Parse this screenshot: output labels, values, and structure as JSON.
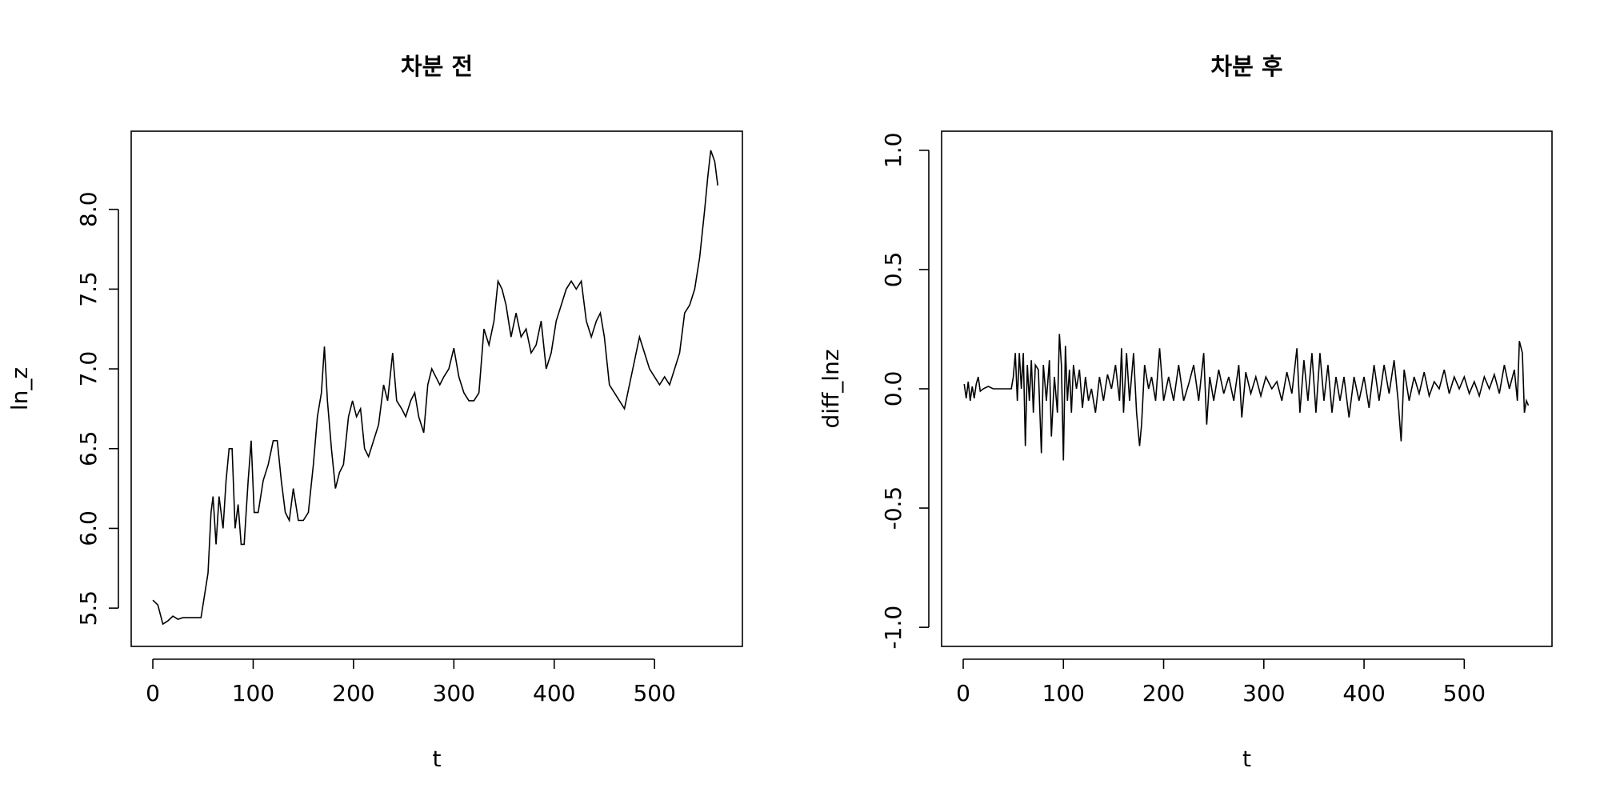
{
  "chart_data": [
    {
      "type": "line",
      "title": "차분 전",
      "xlabel": "t",
      "ylabel": "ln_z",
      "color": "#000000",
      "xlim": [
        -21.56,
        587.56
      ],
      "ylim": [
        5.26,
        8.49
      ],
      "xticks": [
        0,
        100,
        200,
        300,
        400,
        500
      ],
      "yticks": [
        5.5,
        {
          "value": 6.0,
          "label": "6.0"
        },
        6.5,
        {
          "value": 7.0,
          "label": "7.0"
        },
        7.5,
        {
          "value": 8.0,
          "label": "8.0"
        }
      ],
      "x": [
        0,
        5,
        10,
        15,
        20,
        25,
        30,
        40,
        48,
        52,
        55,
        58,
        60,
        63,
        66,
        70,
        73,
        76,
        79,
        82,
        85,
        88,
        91,
        95,
        98,
        101,
        105,
        110,
        115,
        120,
        124,
        128,
        132,
        136,
        140,
        145,
        150,
        155,
        160,
        164,
        168,
        171,
        174,
        178,
        182,
        186,
        190,
        195,
        199,
        203,
        207,
        211,
        215,
        220,
        225,
        230,
        234,
        239,
        243,
        248,
        252,
        257,
        261,
        265,
        270,
        274,
        278,
        282,
        286,
        290,
        295,
        300,
        305,
        310,
        315,
        320,
        325,
        330,
        335,
        340,
        344,
        348,
        352,
        357,
        362,
        367,
        372,
        377,
        382,
        387,
        392,
        397,
        402,
        407,
        412,
        417,
        422,
        427,
        432,
        437,
        442,
        446,
        450,
        455,
        460,
        465,
        470,
        475,
        480,
        485,
        490,
        495,
        500,
        505,
        510,
        515,
        520,
        525,
        530,
        535,
        540,
        545,
        550,
        553,
        556,
        560,
        563
      ],
      "values": [
        5.55,
        5.52,
        5.4,
        5.42,
        5.45,
        5.43,
        5.44,
        5.44,
        5.44,
        5.6,
        5.72,
        6.1,
        6.2,
        5.9,
        6.2,
        6.0,
        6.3,
        6.5,
        6.5,
        6.0,
        6.15,
        5.9,
        5.9,
        6.3,
        6.55,
        6.1,
        6.1,
        6.3,
        6.4,
        6.55,
        6.55,
        6.3,
        6.1,
        6.05,
        6.25,
        6.05,
        6.05,
        6.1,
        6.4,
        6.7,
        6.85,
        7.14,
        6.8,
        6.5,
        6.25,
        6.35,
        6.4,
        6.7,
        6.8,
        6.7,
        6.75,
        6.5,
        6.45,
        6.55,
        6.65,
        6.9,
        6.8,
        7.1,
        6.8,
        6.75,
        6.7,
        6.8,
        6.85,
        6.7,
        6.6,
        6.9,
        7.0,
        6.95,
        6.9,
        6.95,
        7.0,
        7.13,
        6.95,
        6.85,
        6.8,
        6.8,
        6.85,
        7.25,
        7.15,
        7.3,
        7.55,
        7.5,
        7.4,
        7.2,
        7.35,
        7.2,
        7.25,
        7.1,
        7.15,
        7.3,
        7.0,
        7.1,
        7.3,
        7.4,
        7.5,
        7.55,
        7.5,
        7.55,
        7.3,
        7.2,
        7.3,
        7.35,
        7.2,
        6.9,
        6.85,
        6.8,
        6.75,
        6.9,
        7.05,
        7.2,
        7.1,
        7.0,
        6.95,
        6.9,
        6.95,
        6.9,
        7.0,
        7.1,
        7.35,
        7.4,
        7.5,
        7.7,
        8.0,
        8.2,
        8.37,
        8.3,
        8.15
      ]
    },
    {
      "type": "line",
      "title": "차분 후",
      "xlabel": "t",
      "ylabel": "diff_lnz",
      "color": "#000000",
      "xlim": [
        -21.56,
        587.56
      ],
      "ylim": [
        -1.08,
        1.08
      ],
      "xticks": [
        0,
        100,
        200,
        300,
        400,
        500
      ],
      "yticks": [
        {
          "value": -1.0,
          "label": "-1.0"
        },
        {
          "value": -0.5,
          "label": "-0.5"
        },
        {
          "value": 0.0,
          "label": "0.0"
        },
        0.5,
        {
          "value": 1.0,
          "label": "1.0"
        }
      ],
      "x": [
        1,
        3,
        5,
        7,
        9,
        11,
        13,
        15,
        17,
        20,
        25,
        30,
        40,
        48,
        50,
        52,
        54,
        56,
        58,
        60,
        62,
        64,
        66,
        68,
        70,
        72,
        75,
        78,
        80,
        83,
        86,
        88,
        91,
        94,
        96,
        98,
        100,
        102,
        104,
        106,
        108,
        110,
        113,
        116,
        119,
        122,
        125,
        128,
        132,
        136,
        140,
        144,
        148,
        152,
        156,
        158,
        160,
        163,
        166,
        170,
        173,
        176,
        178,
        181,
        185,
        188,
        192,
        196,
        200,
        205,
        210,
        215,
        220,
        225,
        230,
        235,
        240,
        243,
        246,
        250,
        255,
        260,
        265,
        270,
        275,
        278,
        282,
        287,
        292,
        297,
        302,
        308,
        313,
        318,
        323,
        328,
        333,
        336,
        340,
        344,
        348,
        352,
        356,
        360,
        364,
        368,
        372,
        376,
        380,
        385,
        390,
        395,
        400,
        405,
        410,
        415,
        420,
        425,
        430,
        434,
        437,
        440,
        445,
        450,
        455,
        460,
        465,
        470,
        475,
        480,
        485,
        490,
        495,
        500,
        505,
        510,
        515,
        520,
        525,
        530,
        535,
        540,
        545,
        550,
        553,
        555,
        558,
        560,
        562,
        564
      ],
      "values": [
        0.02,
        -0.04,
        0.03,
        -0.05,
        0.01,
        -0.04,
        0.02,
        0.05,
        -0.01,
        0.0,
        0.01,
        0.0,
        0.0,
        0.0,
        0.05,
        0.15,
        -0.05,
        0.15,
        0.0,
        0.15,
        -0.24,
        0.1,
        -0.05,
        0.12,
        -0.1,
        0.1,
        0.08,
        -0.27,
        0.1,
        -0.05,
        0.12,
        -0.2,
        0.05,
        -0.1,
        0.23,
        0.1,
        -0.3,
        0.18,
        -0.05,
        0.08,
        -0.1,
        0.1,
        0.0,
        0.08,
        -0.08,
        0.05,
        -0.05,
        0.0,
        -0.1,
        0.05,
        -0.05,
        0.06,
        0.0,
        0.1,
        -0.05,
        0.17,
        -0.1,
        0.15,
        -0.05,
        0.15,
        -0.1,
        -0.24,
        -0.15,
        0.1,
        0.0,
        0.05,
        -0.05,
        0.17,
        -0.05,
        0.05,
        -0.05,
        0.1,
        -0.05,
        0.02,
        0.1,
        -0.05,
        0.15,
        -0.15,
        0.05,
        -0.05,
        0.08,
        -0.02,
        0.05,
        -0.05,
        0.1,
        -0.12,
        0.07,
        -0.02,
        0.05,
        -0.03,
        0.05,
        0.0,
        0.03,
        -0.05,
        0.07,
        -0.02,
        0.17,
        -0.1,
        0.12,
        -0.05,
        0.15,
        -0.1,
        0.15,
        -0.05,
        0.1,
        -0.1,
        0.05,
        -0.05,
        0.05,
        -0.12,
        0.05,
        -0.05,
        0.05,
        -0.08,
        0.1,
        -0.05,
        0.1,
        -0.02,
        0.12,
        -0.05,
        -0.22,
        0.08,
        -0.05,
        0.05,
        -0.02,
        0.07,
        -0.03,
        0.03,
        0.0,
        0.08,
        -0.02,
        0.05,
        0.0,
        0.05,
        -0.02,
        0.03,
        -0.03,
        0.05,
        0.0,
        0.06,
        -0.02,
        0.1,
        0.0,
        0.08,
        -0.05,
        0.2,
        0.15,
        -0.1,
        -0.05,
        -0.07
      ]
    }
  ]
}
